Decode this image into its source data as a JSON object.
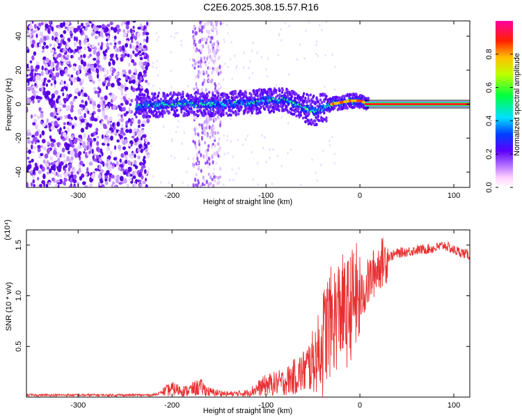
{
  "title": "C2E6.2025.308.15.57.R16",
  "chart_data": [
    {
      "type": "heatmap",
      "xlabel": "Height of straight line (km)",
      "ylabel": "Frequency (Hz)",
      "xlim": [
        -355,
        117
      ],
      "ylim": [
        -49,
        49
      ],
      "xticks": [
        -300,
        -200,
        -100,
        0,
        100
      ],
      "yticks": [
        -40,
        -20,
        0,
        20,
        40
      ],
      "colorbar": {
        "label": "Normalized spectral amplitude",
        "range": [
          0,
          1
        ],
        "ticks": [
          0.0,
          0.2,
          0.4,
          0.6,
          0.8
        ]
      },
      "ridge": {
        "x": [
          -235,
          -200,
          -150,
          -120,
          -100,
          -80,
          -60,
          -50,
          -40,
          -30,
          -20,
          -10,
          0,
          10,
          50,
          117
        ],
        "y": [
          -1,
          0,
          0,
          1,
          2,
          3,
          -2,
          -4,
          -3,
          0,
          1,
          2,
          2,
          0,
          0,
          0
        ]
      },
      "grid": false
    },
    {
      "type": "line",
      "xlabel": "Height of straight line (km)",
      "ylabel": "SNR (10 * v/v)",
      "y_multiplier": "(x10⁴)",
      "xlim": [
        -355,
        117
      ],
      "ylim": [
        0,
        1.65
      ],
      "xticks": [
        -300,
        -200,
        -100,
        0,
        100
      ],
      "yticks": [
        0.5,
        1.0,
        1.5
      ],
      "series": [
        {
          "color": "#e83030",
          "x": [
            -355,
            -300,
            -250,
            -220,
            -200,
            -185,
            -170,
            -160,
            -140,
            -120,
            -100,
            -80,
            -60,
            -50,
            -40,
            -35,
            -30,
            -25,
            -20,
            -15,
            -10,
            -5,
            0,
            10,
            20,
            30,
            40,
            60,
            80,
            90,
            100,
            117
          ],
          "y": [
            0.02,
            0.02,
            0.02,
            0.02,
            0.08,
            0.06,
            0.1,
            0.05,
            0.03,
            0.04,
            0.12,
            0.15,
            0.25,
            0.35,
            0.5,
            0.7,
            0.75,
            0.8,
            0.9,
            0.8,
            0.9,
            1.0,
            0.95,
            1.15,
            1.3,
            1.38,
            1.42,
            1.45,
            1.47,
            1.5,
            1.45,
            1.4
          ]
        }
      ],
      "grid": false
    }
  ]
}
